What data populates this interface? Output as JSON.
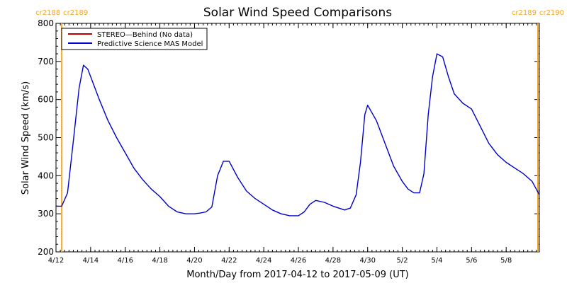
{
  "chart_data": {
    "type": "line",
    "title": "Solar Wind Speed Comparisons",
    "xlabel": "Month/Day from 2017-04-12 to 2017-05-09 (UT)",
    "ylabel": "Solar Wind Speed (km/s)",
    "xlim": [
      "2017-04-12",
      "2017-05-09T22:00"
    ],
    "ylim": [
      200,
      800
    ],
    "y_ticks": [
      200,
      300,
      400,
      500,
      600,
      700,
      800
    ],
    "x_ticks": [
      {
        "date": "2017-04-12",
        "label": "4/12"
      },
      {
        "date": "2017-04-14",
        "label": "4/14"
      },
      {
        "date": "2017-04-16",
        "label": "4/16"
      },
      {
        "date": "2017-04-18",
        "label": "4/18"
      },
      {
        "date": "2017-04-20",
        "label": "4/20"
      },
      {
        "date": "2017-04-22",
        "label": "4/22"
      },
      {
        "date": "2017-04-24",
        "label": "4/24"
      },
      {
        "date": "2017-04-26",
        "label": "4/26"
      },
      {
        "date": "2017-04-28",
        "label": "4/28"
      },
      {
        "date": "2017-04-30",
        "label": "4/30"
      },
      {
        "date": "2017-05-02",
        "label": "5/2"
      },
      {
        "date": "2017-05-04",
        "label": "5/4"
      },
      {
        "date": "2017-05-06",
        "label": "5/6"
      },
      {
        "date": "2017-05-08",
        "label": "5/8"
      }
    ],
    "legend_position": "top-left",
    "carrington_markers": [
      {
        "date": "2017-04-12T08:00",
        "label_left": "cr2188",
        "label_right": "cr2189",
        "color": "#f5a623"
      },
      {
        "date": "2017-05-09T20:00",
        "label_left": "cr2189",
        "label_right": "cr2190",
        "color": "#f5a623"
      }
    ],
    "series": [
      {
        "name": "STEREO—Behind (No data)",
        "color": "#c00000",
        "x": [],
        "y": []
      },
      {
        "name": "Predictive Science MAS Model",
        "color": "#0000cc",
        "x": [
          "2017-04-12",
          "2017-04-12T08:00",
          "2017-04-12T16:00",
          "2017-04-13",
          "2017-04-13T08:00",
          "2017-04-13T14:00",
          "2017-04-13T20:00",
          "2017-04-14",
          "2017-04-14T12:00",
          "2017-04-15",
          "2017-04-15T12:00",
          "2017-04-16",
          "2017-04-16T12:00",
          "2017-04-17",
          "2017-04-17T12:00",
          "2017-04-18",
          "2017-04-18T12:00",
          "2017-04-19",
          "2017-04-19T12:00",
          "2017-04-20",
          "2017-04-20T08:00",
          "2017-04-20T16:00",
          "2017-04-21",
          "2017-04-21T08:00",
          "2017-04-21T16:00",
          "2017-04-22",
          "2017-04-22T12:00",
          "2017-04-23",
          "2017-04-23T12:00",
          "2017-04-24",
          "2017-04-24T12:00",
          "2017-04-25",
          "2017-04-25T12:00",
          "2017-04-26",
          "2017-04-26T08:00",
          "2017-04-26T16:00",
          "2017-04-27",
          "2017-04-27T12:00",
          "2017-04-28",
          "2017-04-28T08:00",
          "2017-04-28T16:00",
          "2017-04-29",
          "2017-04-29T08:00",
          "2017-04-29T14:00",
          "2017-04-29T20:00",
          "2017-04-30",
          "2017-04-30T12:00",
          "2017-05-01",
          "2017-05-01T12:00",
          "2017-05-02",
          "2017-05-02T08:00",
          "2017-05-02T16:00",
          "2017-05-03",
          "2017-05-03T06:00",
          "2017-05-03T12:00",
          "2017-05-03T18:00",
          "2017-05-04",
          "2017-05-04T08:00",
          "2017-05-04T16:00",
          "2017-05-05",
          "2017-05-05T12:00",
          "2017-05-06",
          "2017-05-06T12:00",
          "2017-05-07",
          "2017-05-07T12:00",
          "2017-05-08",
          "2017-05-08T12:00",
          "2017-05-09",
          "2017-05-09T12:00",
          "2017-05-09T22:00"
        ],
        "y": [
          320,
          320,
          355,
          490,
          630,
          690,
          680,
          660,
          600,
          545,
          500,
          460,
          420,
          390,
          365,
          345,
          320,
          305,
          300,
          300,
          302,
          305,
          318,
          400,
          438,
          438,
          395,
          360,
          340,
          325,
          310,
          300,
          295,
          295,
          305,
          325,
          335,
          330,
          320,
          315,
          310,
          315,
          350,
          435,
          560,
          585,
          545,
          485,
          425,
          385,
          365,
          355,
          355,
          405,
          560,
          660,
          720,
          712,
          660,
          615,
          590,
          575,
          530,
          485,
          455,
          435,
          420,
          405,
          385,
          350
        ]
      }
    ]
  }
}
